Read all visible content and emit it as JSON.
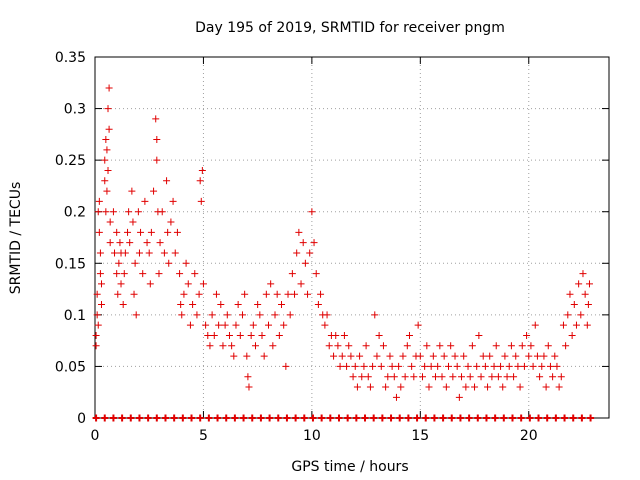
{
  "chart_data": {
    "type": "scatter",
    "title": "Day 195 of 2019, SRMTID for receiver pngm",
    "xlabel": "GPS time / hours",
    "ylabel": "SRMTID / TECUs",
    "xlim": [
      0,
      23.7
    ],
    "ylim": [
      0,
      0.35
    ],
    "grid": true,
    "marker": "+",
    "color": "#e00000",
    "x_ticks": [
      "0",
      "5",
      "10",
      "15",
      "20"
    ],
    "y_ticks": [
      "0",
      "0.05",
      "0.1",
      "0.15",
      "0.2",
      "0.25",
      "0.3",
      "0.35"
    ],
    "x_tick_values": [
      0,
      5,
      10,
      15,
      20
    ],
    "y_tick_values": [
      0,
      0.05,
      0.1,
      0.15,
      0.2,
      0.25,
      0.3,
      0.35
    ],
    "series": [
      {
        "name": "SRMTID",
        "points": [
          [
            0.05,
            0.08
          ],
          [
            0.05,
            0.07
          ],
          [
            0.1,
            0.1
          ],
          [
            0.1,
            0.12
          ],
          [
            0.15,
            0.09
          ],
          [
            0.15,
            0.2
          ],
          [
            0.2,
            0.21
          ],
          [
            0.2,
            0.18
          ],
          [
            0.25,
            0.14
          ],
          [
            0.25,
            0.16
          ],
          [
            0.3,
            0.13
          ],
          [
            0.3,
            0.11
          ],
          [
            0.45,
            0.25
          ],
          [
            0.45,
            0.23
          ],
          [
            0.5,
            0.2
          ],
          [
            0.5,
            0.27
          ],
          [
            0.55,
            0.26
          ],
          [
            0.55,
            0.22
          ],
          [
            0.6,
            0.3
          ],
          [
            0.65,
            0.32
          ],
          [
            0.65,
            0.28
          ],
          [
            0.6,
            0.24
          ],
          [
            0.7,
            0.19
          ],
          [
            0.7,
            0.17
          ],
          [
            0.85,
            0.2
          ],
          [
            0.9,
            0.16
          ],
          [
            1.0,
            0.18
          ],
          [
            1.0,
            0.14
          ],
          [
            1.05,
            0.12
          ],
          [
            1.1,
            0.15
          ],
          [
            1.15,
            0.17
          ],
          [
            1.2,
            0.13
          ],
          [
            1.2,
            0.16
          ],
          [
            1.3,
            0.11
          ],
          [
            1.35,
            0.14
          ],
          [
            1.4,
            0.16
          ],
          [
            1.5,
            0.18
          ],
          [
            1.55,
            0.2
          ],
          [
            1.6,
            0.17
          ],
          [
            1.7,
            0.22
          ],
          [
            1.75,
            0.19
          ],
          [
            1.8,
            0.12
          ],
          [
            1.85,
            0.15
          ],
          [
            1.9,
            0.1
          ],
          [
            2.0,
            0.2
          ],
          [
            2.05,
            0.16
          ],
          [
            2.1,
            0.18
          ],
          [
            2.2,
            0.14
          ],
          [
            2.3,
            0.21
          ],
          [
            2.4,
            0.17
          ],
          [
            2.5,
            0.16
          ],
          [
            2.55,
            0.13
          ],
          [
            2.6,
            0.18
          ],
          [
            2.7,
            0.22
          ],
          [
            2.8,
            0.29
          ],
          [
            2.85,
            0.27
          ],
          [
            2.85,
            0.25
          ],
          [
            2.9,
            0.2
          ],
          [
            2.95,
            0.14
          ],
          [
            3.0,
            0.17
          ],
          [
            3.1,
            0.2
          ],
          [
            3.2,
            0.16
          ],
          [
            3.3,
            0.23
          ],
          [
            3.35,
            0.18
          ],
          [
            3.4,
            0.15
          ],
          [
            3.5,
            0.19
          ],
          [
            3.6,
            0.21
          ],
          [
            3.7,
            0.16
          ],
          [
            3.8,
            0.18
          ],
          [
            3.9,
            0.14
          ],
          [
            3.95,
            0.11
          ],
          [
            4.0,
            0.1
          ],
          [
            4.1,
            0.12
          ],
          [
            4.2,
            0.15
          ],
          [
            4.3,
            0.13
          ],
          [
            4.4,
            0.09
          ],
          [
            4.5,
            0.11
          ],
          [
            4.6,
            0.14
          ],
          [
            4.7,
            0.1
          ],
          [
            4.8,
            0.12
          ],
          [
            4.85,
            0.23
          ],
          [
            4.9,
            0.21
          ],
          [
            4.95,
            0.24
          ],
          [
            5.0,
            0.13
          ],
          [
            5.1,
            0.09
          ],
          [
            5.2,
            0.08
          ],
          [
            5.3,
            0.07
          ],
          [
            5.4,
            0.1
          ],
          [
            5.5,
            0.08
          ],
          [
            5.6,
            0.12
          ],
          [
            5.7,
            0.09
          ],
          [
            5.8,
            0.11
          ],
          [
            5.9,
            0.07
          ],
          [
            6.0,
            0.09
          ],
          [
            6.1,
            0.1
          ],
          [
            6.2,
            0.08
          ],
          [
            6.3,
            0.07
          ],
          [
            6.4,
            0.06
          ],
          [
            6.5,
            0.09
          ],
          [
            6.6,
            0.11
          ],
          [
            6.7,
            0.08
          ],
          [
            6.8,
            0.1
          ],
          [
            6.9,
            0.12
          ],
          [
            7.0,
            0.06
          ],
          [
            7.05,
            0.04
          ],
          [
            7.1,
            0.03
          ],
          [
            7.2,
            0.08
          ],
          [
            7.3,
            0.09
          ],
          [
            7.4,
            0.07
          ],
          [
            7.5,
            0.11
          ],
          [
            7.6,
            0.1
          ],
          [
            7.7,
            0.08
          ],
          [
            7.8,
            0.06
          ],
          [
            7.9,
            0.12
          ],
          [
            8.0,
            0.09
          ],
          [
            8.1,
            0.13
          ],
          [
            8.2,
            0.07
          ],
          [
            8.3,
            0.1
          ],
          [
            8.4,
            0.12
          ],
          [
            8.5,
            0.08
          ],
          [
            8.6,
            0.11
          ],
          [
            8.7,
            0.09
          ],
          [
            8.8,
            0.05
          ],
          [
            8.9,
            0.12
          ],
          [
            9.0,
            0.1
          ],
          [
            9.1,
            0.14
          ],
          [
            9.2,
            0.12
          ],
          [
            9.3,
            0.16
          ],
          [
            9.4,
            0.18
          ],
          [
            9.5,
            0.13
          ],
          [
            9.6,
            0.17
          ],
          [
            9.7,
            0.15
          ],
          [
            9.8,
            0.12
          ],
          [
            9.9,
            0.16
          ],
          [
            10.0,
            0.2
          ],
          [
            10.1,
            0.17
          ],
          [
            10.2,
            0.14
          ],
          [
            10.3,
            0.11
          ],
          [
            10.4,
            0.12
          ],
          [
            10.5,
            0.1
          ],
          [
            10.6,
            0.09
          ],
          [
            10.7,
            0.1
          ],
          [
            10.8,
            0.07
          ],
          [
            10.9,
            0.08
          ],
          [
            11.0,
            0.06
          ],
          [
            11.1,
            0.08
          ],
          [
            11.2,
            0.07
          ],
          [
            11.3,
            0.05
          ],
          [
            11.4,
            0.06
          ],
          [
            11.5,
            0.08
          ],
          [
            11.6,
            0.05
          ],
          [
            11.7,
            0.07
          ],
          [
            11.8,
            0.06
          ],
          [
            11.9,
            0.04
          ],
          [
            12.0,
            0.05
          ],
          [
            12.1,
            0.03
          ],
          [
            12.2,
            0.06
          ],
          [
            12.3,
            0.04
          ],
          [
            12.4,
            0.05
          ],
          [
            12.5,
            0.07
          ],
          [
            12.6,
            0.04
          ],
          [
            12.7,
            0.03
          ],
          [
            12.8,
            0.05
          ],
          [
            12.9,
            0.1
          ],
          [
            13.0,
            0.06
          ],
          [
            13.1,
            0.08
          ],
          [
            13.2,
            0.05
          ],
          [
            13.3,
            0.07
          ],
          [
            13.4,
            0.03
          ],
          [
            13.5,
            0.04
          ],
          [
            13.6,
            0.06
          ],
          [
            13.7,
            0.05
          ],
          [
            13.8,
            0.04
          ],
          [
            13.9,
            0.02
          ],
          [
            14.0,
            0.05
          ],
          [
            14.1,
            0.03
          ],
          [
            14.2,
            0.06
          ],
          [
            14.3,
            0.04
          ],
          [
            14.4,
            0.07
          ],
          [
            14.5,
            0.08
          ],
          [
            14.6,
            0.05
          ],
          [
            14.7,
            0.04
          ],
          [
            14.8,
            0.06
          ],
          [
            14.9,
            0.09
          ],
          [
            15.0,
            0.06
          ],
          [
            15.1,
            0.04
          ],
          [
            15.2,
            0.05
          ],
          [
            15.3,
            0.07
          ],
          [
            15.4,
            0.03
          ],
          [
            15.5,
            0.05
          ],
          [
            15.6,
            0.06
          ],
          [
            15.7,
            0.04
          ],
          [
            15.8,
            0.05
          ],
          [
            15.9,
            0.07
          ],
          [
            16.0,
            0.04
          ],
          [
            16.1,
            0.06
          ],
          [
            16.2,
            0.03
          ],
          [
            16.3,
            0.05
          ],
          [
            16.4,
            0.07
          ],
          [
            16.5,
            0.04
          ],
          [
            16.6,
            0.06
          ],
          [
            16.7,
            0.05
          ],
          [
            16.8,
            0.02
          ],
          [
            16.9,
            0.04
          ],
          [
            17.0,
            0.06
          ],
          [
            17.1,
            0.03
          ],
          [
            17.2,
            0.05
          ],
          [
            17.3,
            0.04
          ],
          [
            17.4,
            0.07
          ],
          [
            17.5,
            0.03
          ],
          [
            17.6,
            0.05
          ],
          [
            17.7,
            0.08
          ],
          [
            17.8,
            0.04
          ],
          [
            17.9,
            0.06
          ],
          [
            18.0,
            0.05
          ],
          [
            18.1,
            0.03
          ],
          [
            18.2,
            0.06
          ],
          [
            18.3,
            0.04
          ],
          [
            18.4,
            0.05
          ],
          [
            18.5,
            0.07
          ],
          [
            18.6,
            0.04
          ],
          [
            18.7,
            0.05
          ],
          [
            18.8,
            0.03
          ],
          [
            18.9,
            0.06
          ],
          [
            19.0,
            0.04
          ],
          [
            19.1,
            0.05
          ],
          [
            19.2,
            0.07
          ],
          [
            19.3,
            0.04
          ],
          [
            19.4,
            0.06
          ],
          [
            19.5,
            0.05
          ],
          [
            19.6,
            0.03
          ],
          [
            19.7,
            0.07
          ],
          [
            19.8,
            0.05
          ],
          [
            19.9,
            0.08
          ],
          [
            20.0,
            0.06
          ],
          [
            20.1,
            0.07
          ],
          [
            20.2,
            0.05
          ],
          [
            20.3,
            0.09
          ],
          [
            20.4,
            0.06
          ],
          [
            20.5,
            0.04
          ],
          [
            20.6,
            0.05
          ],
          [
            20.7,
            0.06
          ],
          [
            20.8,
            0.03
          ],
          [
            20.9,
            0.07
          ],
          [
            21.0,
            0.05
          ],
          [
            21.1,
            0.04
          ],
          [
            21.2,
            0.06
          ],
          [
            21.3,
            0.05
          ],
          [
            21.4,
            0.03
          ],
          [
            21.5,
            0.04
          ],
          [
            21.6,
            0.09
          ],
          [
            21.7,
            0.07
          ],
          [
            21.8,
            0.1
          ],
          [
            21.9,
            0.12
          ],
          [
            22.0,
            0.08
          ],
          [
            22.1,
            0.11
          ],
          [
            22.2,
            0.09
          ],
          [
            22.3,
            0.13
          ],
          [
            22.4,
            0.1
          ],
          [
            22.5,
            0.14
          ],
          [
            22.6,
            0.12
          ],
          [
            22.7,
            0.09
          ],
          [
            22.75,
            0.11
          ],
          [
            22.8,
            0.13
          ]
        ]
      }
    ],
    "baseline_markers": {
      "y": 0,
      "x": [
        0.05,
        0.45,
        0.85,
        1.25,
        1.65,
        2.05,
        2.45,
        2.85,
        3.25,
        3.65,
        4.05,
        4.45,
        4.85,
        5.25,
        5.65,
        6.05,
        6.45,
        6.85,
        7.25,
        7.65,
        8.05,
        8.45,
        8.85,
        9.25,
        9.65,
        10.05,
        10.45,
        10.85,
        11.25,
        11.65,
        12.05,
        12.45,
        12.85,
        13.25,
        13.65,
        14.05,
        14.45,
        14.85,
        15.25,
        15.65,
        16.05,
        16.45,
        16.85,
        17.25,
        17.65,
        18.05,
        18.45,
        18.85,
        19.25,
        19.65,
        20.05,
        20.45,
        20.85,
        21.25,
        21.65,
        22.05,
        22.45,
        22.85
      ]
    }
  }
}
